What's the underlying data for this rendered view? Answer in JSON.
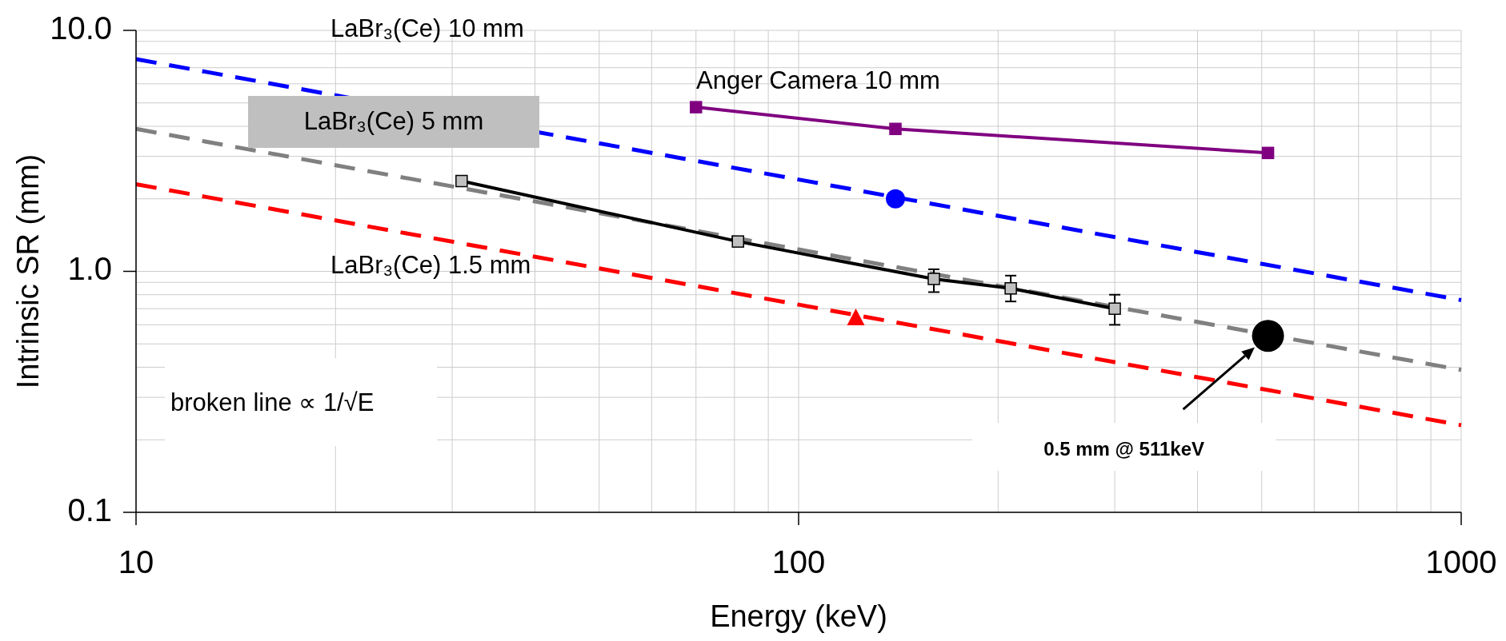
{
  "chart_data": {
    "type": "line",
    "xlabel": "Energy (keV)",
    "ylabel": "Intrinsic SR (mm)",
    "log": "xy",
    "grid": true,
    "legend": false,
    "xlim": [
      10,
      1000
    ],
    "xticks": [
      10,
      100,
      1000
    ],
    "ylim": [
      0.1,
      10
    ],
    "yticks": [
      {
        "value": 10,
        "label": "10.0"
      },
      {
        "value": 1,
        "label": "1.0"
      },
      0.1
    ],
    "series": [
      {
        "name": "LaBr₃(Ce) 10 mm",
        "color": "#0000ff",
        "x": [
          10,
          1000
        ],
        "values": [
          7.6,
          0.76
        ],
        "line_style": "dashed",
        "marker": "none"
      },
      {
        "name": "LaBr₃(Ce) 5 mm",
        "color": "#808080",
        "x": [
          10,
          1000
        ],
        "values": [
          3.9,
          0.39
        ],
        "line_style": "dashed",
        "marker": "none"
      },
      {
        "name": "LaBr₃(Ce) 1.5 mm",
        "color": "#ff0000",
        "x": [
          10,
          1000
        ],
        "values": [
          2.3,
          0.23
        ],
        "line_style": "dashed",
        "marker": "none"
      },
      {
        "name": "Anger Camera 10 mm",
        "color": "#800080",
        "x": [
          70,
          140,
          511
        ],
        "values": [
          4.8,
          3.9,
          3.1
        ],
        "line_style": "solid",
        "marker": "square"
      },
      {
        "color": "#000000",
        "x": [
          31,
          81,
          160,
          209,
          300
        ],
        "values": [
          2.37,
          1.33,
          0.93,
          0.85,
          0.7
        ],
        "errors": [
          null,
          [
            1.29,
            1.37
          ],
          [
            0.82,
            1.02
          ],
          [
            0.75,
            0.96
          ],
          [
            0.6,
            0.8
          ]
        ],
        "line_style": "solid",
        "marker": "square"
      },
      {
        "type": "scatter",
        "color": "#0000ff",
        "x": [
          140
        ],
        "values": [
          2.0
        ],
        "marker": "circle"
      },
      {
        "type": "scatter",
        "color": "#ff0000",
        "x": [
          122
        ],
        "values": [
          0.64
        ],
        "marker": "triangle"
      },
      {
        "type": "scatter",
        "color": "#000000",
        "x": [
          511
        ],
        "values": [
          0.54
        ],
        "marker": "circle"
      }
    ],
    "annotations": [
      "broken line ∝ 1/√E",
      "0.5 mm @ 511keV"
    ]
  }
}
